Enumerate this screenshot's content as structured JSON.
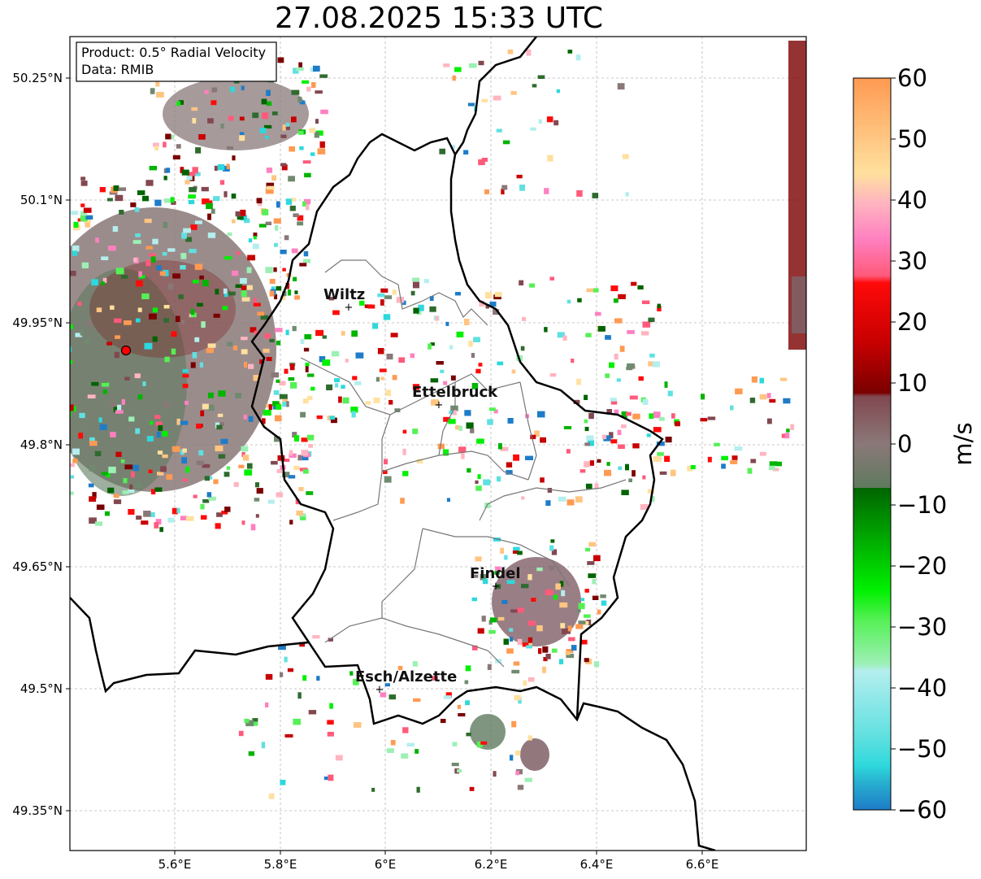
{
  "title": "27.08.2025 15:33 UTC",
  "info_box": {
    "product": "Product: 0.5° Radial Velocity",
    "data": "Data: RMIB"
  },
  "axes": {
    "x_ticks": [
      "5.6°E",
      "5.8°E",
      "6°E",
      "6.2°E",
      "6.4°E",
      "6.6°E"
    ],
    "y_ticks": [
      "50.25°N",
      "50.1°N",
      "49.95°N",
      "49.8°N",
      "49.65°N",
      "49.5°N",
      "49.35°N"
    ]
  },
  "cities": [
    {
      "name": "Wiltz"
    },
    {
      "name": "Ettelbruck"
    },
    {
      "name": "Findel"
    },
    {
      "name": "Esch/Alzette"
    }
  ],
  "colorbar": {
    "label": "m/s",
    "ticks": [
      "60",
      "50",
      "40",
      "30",
      "20",
      "10",
      "0",
      "−10",
      "−20",
      "−30",
      "−40",
      "−50",
      "−60"
    ],
    "range": [
      -60,
      60
    ],
    "stops": [
      "#ff9a52",
      "#ffc581",
      "#ffe09e",
      "#ffb5c0",
      "#ff80c0",
      "#ff5a7a",
      "#ff0a0a",
      "#c80000",
      "#7a0000",
      "#824850",
      "#8a7878",
      "#708a70",
      "#2f6b2f",
      "#006400",
      "#00b400",
      "#00f000",
      "#55f055",
      "#9cf0b4",
      "#b4eeee",
      "#60e0e0",
      "#2ed8dc",
      "#1e7cc8"
    ]
  }
}
